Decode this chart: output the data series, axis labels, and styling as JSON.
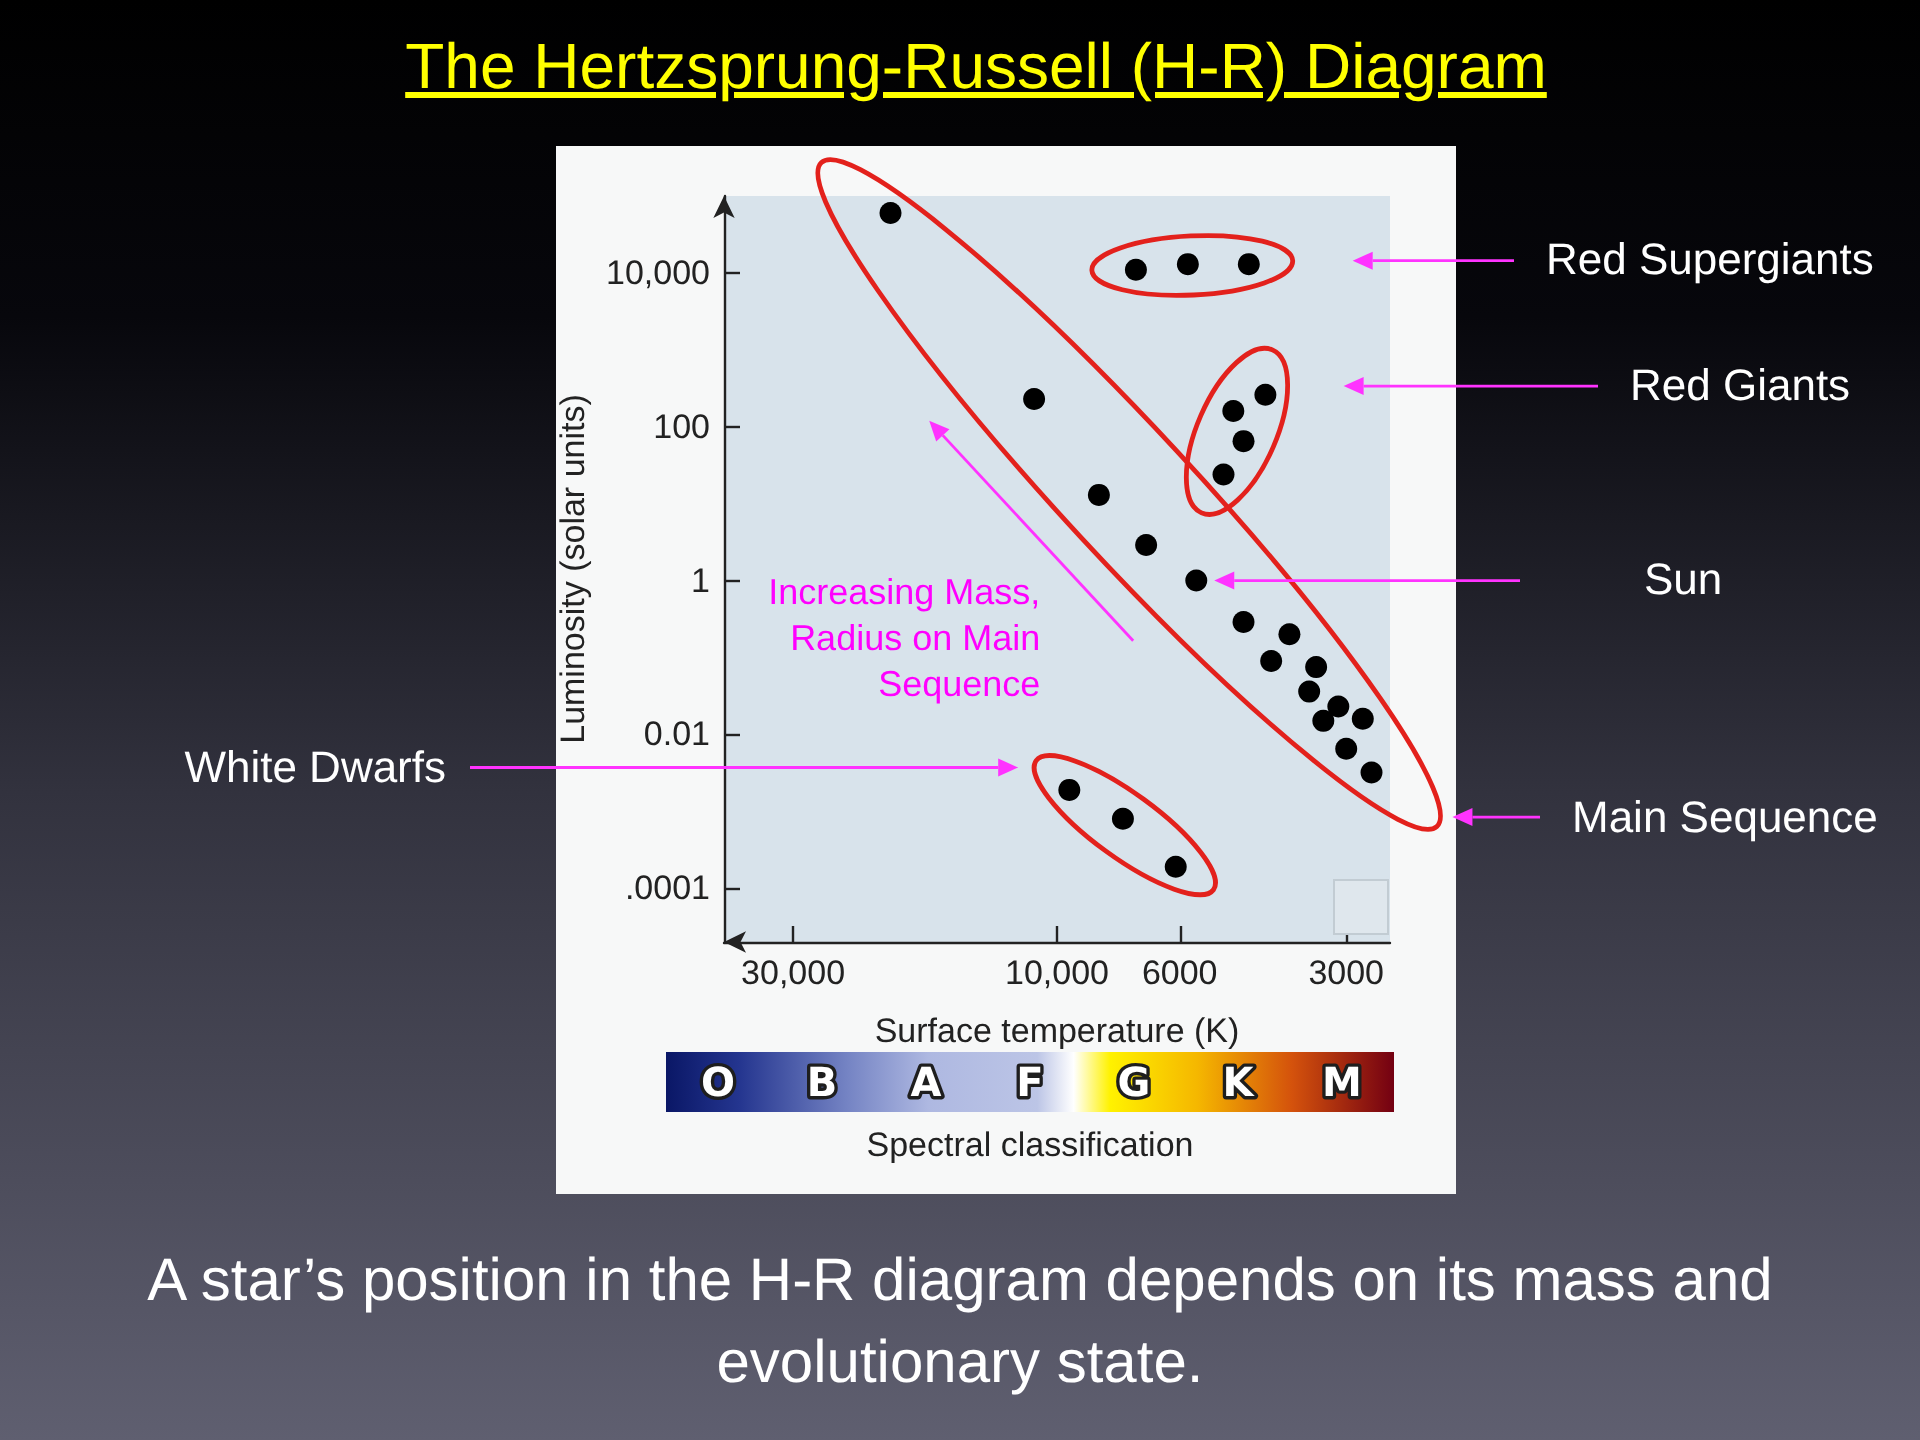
{
  "chart_data": {
    "type": "scatter",
    "title": "The Hertzsprung-Russell (H-R) Diagram",
    "xlabel": "Surface temperature (K)",
    "ylabel": "Luminosity (solar units)",
    "log": "xy",
    "xlim": [
      40000,
      2500
    ],
    "xticks": [
      {
        "value": 30000,
        "label": "30,000"
      },
      {
        "value": 10000,
        "label": "10,000"
      },
      6000,
      3000
    ],
    "ylim": [
      2e-05,
      100000
    ],
    "yticks": [
      {
        "value": 0.0001,
        "label": ".0001"
      },
      0.01,
      1,
      100,
      {
        "value": 10000,
        "label": "10,000"
      }
    ],
    "marker": "circle",
    "series": [
      {
        "color": "#000000",
        "x": [
          20000,
          11000,
          8400,
          6900,
          5600,
          4600,
          3800,
          4100,
          3400,
          3500,
          3100,
          3300,
          2800,
          3000,
          2700
        ],
        "values": [
          60000,
          230,
          13,
          2.9,
          1,
          0.29,
          0.2,
          0.09,
          0.075,
          0.036,
          0.023,
          0.015,
          0.016,
          0.0065,
          0.0032
        ]
      },
      {
        "color": "#000000",
        "x": [
          7200,
          5800,
          4500
        ],
        "values": [
          11000,
          13000,
          13000
        ]
      },
      {
        "color": "#000000",
        "x": [
          4200,
          4800,
          4600,
          5000
        ],
        "values": [
          260,
          160,
          65,
          24
        ]
      },
      {
        "color": "#000000",
        "x": [
          9500,
          7600,
          6100
        ],
        "values": [
          0.0019,
          0.0008,
          0.00019
        ]
      }
    ],
    "annotations": [
      "Red Supergiants",
      "Red Giants",
      "Sun",
      "Main Sequence",
      "White Dwarfs",
      "Increasing Mass, Radius on Main Sequence",
      "O",
      "B",
      "A",
      "F",
      "G",
      "K",
      "M",
      "Spectral classification",
      "A star’s position in the H-R diagram depends on its mass and evolutionary state."
    ]
  }
}
